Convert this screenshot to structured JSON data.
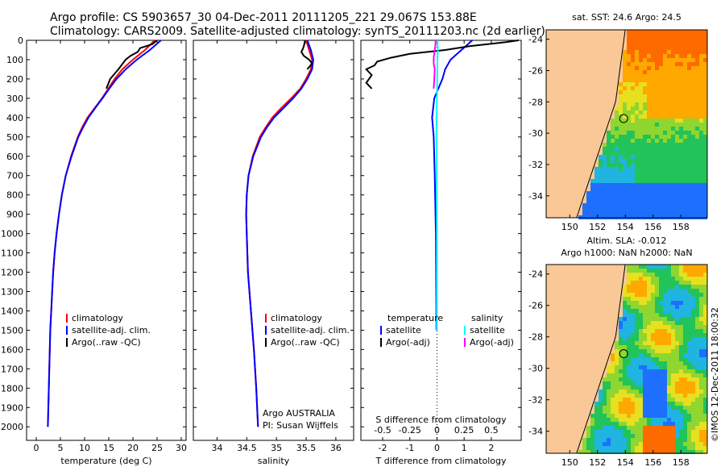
{
  "header": {
    "line1": "Argo profile: CS 5903657_30 04-Dec-2011 20111205_221 29.067S 153.88E",
    "line2": "Climatology: CARS2009. Satellite-adjusted climatology: synTS_20111203.nc (2d earlier)"
  },
  "watermark": "©IMOS 12-Dec-2011 18:00:32",
  "colors": {
    "climatology": "#ff0000",
    "satellite": "#0000ff",
    "argo": "#000000",
    "sat_salinity": "#00ffff",
    "argo_salinity": "#ff00ff",
    "land": "#f9c896"
  },
  "depth_ticks": [
    "0",
    "100",
    "200",
    "300",
    "400",
    "500",
    "600",
    "700",
    "800",
    "900",
    "1000",
    "1100",
    "1200",
    "1300",
    "1400",
    "1500",
    "1600",
    "1700",
    "1800",
    "1900",
    "2000"
  ],
  "chart_data": [
    {
      "type": "line",
      "xlabel": "temperature (deg C)",
      "ylabel": "",
      "xlim": [
        -2,
        31
      ],
      "ylim": [
        2070,
        0
      ],
      "xticks": [
        "0",
        "5",
        "10",
        "15",
        "20",
        "25",
        "30"
      ],
      "legend": [
        "climatology",
        "satellite-adj. clim.",
        "Argo(..raw -QC)"
      ],
      "series": [
        {
          "name": "climatology",
          "depth": [
            0,
            50,
            100,
            150,
            200,
            250,
            300,
            350,
            400,
            450,
            500,
            600,
            700,
            800,
            900,
            1000,
            1100,
            1200,
            1300,
            1400,
            1500,
            1600,
            1700,
            1800,
            1900,
            2000
          ],
          "values": [
            24.5,
            22.5,
            20.0,
            17.8,
            16.2,
            14.9,
            13.6,
            12.1,
            10.6,
            9.5,
            8.6,
            7.2,
            6.1,
            5.3,
            4.7,
            4.2,
            3.8,
            3.5,
            3.3,
            3.1,
            2.9,
            2.8,
            2.7,
            2.6,
            2.5,
            2.4
          ]
        },
        {
          "name": "satellite-adj. clim.",
          "depth": [
            0,
            50,
            100,
            150,
            200,
            250,
            300,
            350,
            400,
            450,
            500,
            600,
            700,
            800,
            900,
            1000,
            1100,
            1200,
            1300,
            1400,
            1500,
            1600,
            1700,
            1800,
            1900,
            2000
          ],
          "values": [
            25.8,
            23.5,
            20.8,
            18.5,
            16.6,
            15.1,
            13.7,
            12.2,
            10.8,
            9.7,
            8.7,
            7.3,
            6.1,
            5.3,
            4.7,
            4.2,
            3.8,
            3.5,
            3.3,
            3.1,
            2.9,
            2.8,
            2.7,
            2.6,
            2.5,
            2.4
          ]
        },
        {
          "name": "Argo(..raw -QC)",
          "depth": [
            0,
            20,
            40,
            60,
            80,
            100,
            150,
            200,
            250
          ],
          "values": [
            25.0,
            24.0,
            21.5,
            21.0,
            19.5,
            18.5,
            17.0,
            15.3,
            14.5
          ]
        }
      ]
    },
    {
      "type": "line",
      "xlabel": "salinity",
      "ylabel": "",
      "xlim": [
        33.6,
        36.3
      ],
      "ylim": [
        2070,
        0
      ],
      "xticks": [
        "34",
        "34.5",
        "35",
        "35.5",
        "36"
      ],
      "legend": [
        "climatology",
        "satellite-adj. clim.",
        "Argo(..raw -QC)"
      ],
      "annotation": [
        "Argo AUSTRALIA",
        "PI: Susan Wijffels"
      ],
      "series": [
        {
          "name": "climatology",
          "depth": [
            0,
            50,
            100,
            150,
            200,
            250,
            300,
            350,
            400,
            450,
            500,
            600,
            700,
            800,
            900,
            1000,
            1200,
            1400,
            1600,
            1800,
            2000
          ],
          "values": [
            35.5,
            35.55,
            35.6,
            35.58,
            35.5,
            35.4,
            35.25,
            35.08,
            34.93,
            34.82,
            34.72,
            34.6,
            34.53,
            34.5,
            34.49,
            34.5,
            34.52,
            34.57,
            34.62,
            34.66,
            34.69
          ]
        },
        {
          "name": "satellite-adj. clim.",
          "depth": [
            0,
            50,
            100,
            150,
            200,
            250,
            300,
            350,
            400,
            450,
            500,
            600,
            700,
            800,
            900,
            1000,
            1200,
            1400,
            1600,
            1800,
            2000
          ],
          "values": [
            35.52,
            35.58,
            35.62,
            35.6,
            35.52,
            35.42,
            35.28,
            35.12,
            34.96,
            34.84,
            34.74,
            34.61,
            34.53,
            34.5,
            34.49,
            34.5,
            34.52,
            34.57,
            34.62,
            34.66,
            34.69
          ]
        },
        {
          "name": "Argo(..raw -QC)",
          "depth": [
            0,
            20,
            40,
            60,
            80,
            100,
            120,
            150
          ],
          "values": [
            35.48,
            35.47,
            35.45,
            35.42,
            35.46,
            35.55,
            35.6,
            35.52
          ]
        }
      ]
    },
    {
      "type": "line",
      "xlabel": "T difference from climatology",
      "x2label": "S difference from climatology",
      "ylabel": "",
      "xlim": [
        -2.8,
        3.1
      ],
      "ylim": [
        2070,
        0
      ],
      "xticks": [
        "-2",
        "-1",
        "0",
        "1",
        "2"
      ],
      "x2ticks": [
        "-0.5",
        "-0.25",
        "0",
        "0.25",
        "0.5"
      ],
      "legend_headers": [
        "temperature",
        "salinity"
      ],
      "legend": [
        "satellite",
        "Argo(-adj)",
        "satellite",
        "Argo(-adj)"
      ],
      "series": [
        {
          "name": "temperature satellite",
          "depth": [
            0,
            50,
            100,
            150,
            200,
            250,
            300,
            400,
            500,
            700,
            1000,
            1500
          ],
          "values": [
            1.3,
            0.9,
            0.5,
            0.3,
            0.2,
            0.05,
            -0.1,
            -0.18,
            -0.12,
            -0.08,
            -0.04,
            -0.02
          ]
        },
        {
          "name": "temperature Argo(-adj)",
          "depth": [
            0,
            10,
            30,
            50,
            70,
            90,
            110,
            130,
            150,
            180,
            220,
            250
          ],
          "values": [
            3.0,
            2.5,
            1.2,
            0.3,
            -1.0,
            -1.7,
            -2.2,
            -2.3,
            -2.6,
            -2.4,
            -2.6,
            -2.4
          ]
        },
        {
          "name": "salinity satellite",
          "depth": [
            0,
            50,
            100,
            200,
            300,
            400,
            500,
            600,
            1000,
            1500
          ],
          "values": [
            0.02,
            0.03,
            0.02,
            0.01,
            0.0,
            -0.02,
            -0.02,
            -0.01,
            0.0,
            0.0
          ]
        },
        {
          "name": "salinity Argo(-adj)",
          "depth": [
            0,
            30,
            60,
            90,
            120,
            150,
            200,
            250
          ],
          "values": [
            -0.05,
            -0.06,
            -0.09,
            -0.12,
            -0.12,
            -0.08,
            -0.1,
            -0.12
          ]
        }
      ]
    },
    {
      "type": "heatmap",
      "title": "sat. SST: 24.6  Argo: 24.5",
      "xticks": [
        "150",
        "152",
        "154",
        "156",
        "158"
      ],
      "yticks": [
        "-24",
        "-26",
        "-28",
        "-30",
        "-32",
        "-34"
      ],
      "xlim": [
        148.3,
        159.9
      ],
      "ylim": [
        -35.4,
        -23.4
      ]
    },
    {
      "type": "heatmap",
      "title_line1": "Altim. SLA: -0.012",
      "title_line2": "Argo h1000: NaN h2000: NaN",
      "xticks": [
        "150",
        "152",
        "154",
        "156",
        "158"
      ],
      "yticks": [
        "-24",
        "-26",
        "-28",
        "-30",
        "-32",
        "-34"
      ],
      "xlim": [
        148.3,
        159.9
      ],
      "ylim": [
        -35.4,
        -23.4
      ]
    }
  ]
}
